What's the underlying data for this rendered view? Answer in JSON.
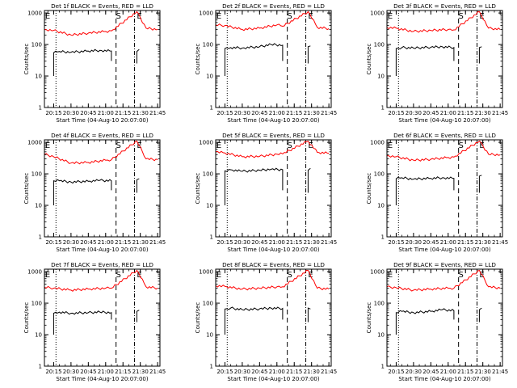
{
  "figure": {
    "x_axis_title": "Start Time (04-Aug-10 20:07:00)",
    "y_axis_title": "Counts/sec",
    "x_tick_labels": [
      "20:15",
      "20:30",
      "20:45",
      "21:00",
      "21:15",
      "21:30",
      "21:45"
    ],
    "y_tick_labels": [
      "1",
      "10",
      "100",
      "1000"
    ],
    "colors": {
      "events": "#000000",
      "lld": "#ff0000",
      "background": "#ffffff"
    }
  },
  "chart_data": [
    {
      "type": "line",
      "title": "Det 1f BLACK = Events, RED = LLD",
      "xlabel": "Start Time (04-Aug-10 20:07:00)",
      "ylabel": "Counts/sec",
      "xlim": [
        "20:07",
        "21:47"
      ],
      "ylim": [
        1,
        1200
      ],
      "yscale": "log",
      "markers": [
        "E",
        "S",
        "E"
      ],
      "series": [
        {
          "name": "Events",
          "color": "#000000",
          "x": [
            "20:15",
            "20:20",
            "20:30",
            "20:45",
            "20:55",
            "21:05",
            "21:27",
            "21:29"
          ],
          "y": [
            55,
            60,
            57,
            62,
            65,
            62,
            60,
            70
          ]
        },
        {
          "name": "LLD",
          "color": "#ff0000",
          "x": [
            "20:07",
            "20:15",
            "20:30",
            "20:45",
            "21:00",
            "21:05",
            "21:27",
            "21:35",
            "21:45"
          ],
          "y": [
            300,
            280,
            200,
            230,
            260,
            270,
            1100,
            330,
            300
          ]
        }
      ]
    },
    {
      "type": "line",
      "title": "Det 2f BLACK = Events, RED = LLD",
      "xlabel": "Start Time (04-Aug-10 20:07:00)",
      "ylabel": "Counts/sec",
      "xlim": [
        "20:07",
        "21:47"
      ],
      "ylim": [
        1,
        1200
      ],
      "yscale": "log",
      "markers": [
        "E",
        "S",
        "E"
      ],
      "series": [
        {
          "name": "Events",
          "color": "#000000",
          "x": [
            "20:15",
            "20:20",
            "20:30",
            "20:45",
            "20:55",
            "21:05",
            "21:27",
            "21:29"
          ],
          "y": [
            75,
            80,
            78,
            85,
            100,
            95,
            85,
            90
          ]
        },
        {
          "name": "LLD",
          "color": "#ff0000",
          "x": [
            "20:07",
            "20:15",
            "20:30",
            "20:45",
            "21:00",
            "21:05",
            "21:27",
            "21:35",
            "21:45"
          ],
          "y": [
            420,
            400,
            300,
            330,
            420,
            380,
            1100,
            350,
            320
          ]
        }
      ]
    },
    {
      "type": "line",
      "title": "Det 3f BLACK = Events, RED = LLD",
      "xlabel": "Start Time (04-Aug-10 20:07:00)",
      "ylabel": "Counts/sec",
      "xlim": [
        "20:07",
        "21:47"
      ],
      "ylim": [
        1,
        1200
      ],
      "yscale": "log",
      "markers": [
        "E",
        "S",
        "E"
      ],
      "series": [
        {
          "name": "Events",
          "color": "#000000",
          "x": [
            "20:15",
            "20:20",
            "20:30",
            "20:45",
            "20:55",
            "21:05",
            "21:27",
            "21:29"
          ],
          "y": [
            75,
            80,
            77,
            82,
            85,
            80,
            80,
            85
          ]
        },
        {
          "name": "LLD",
          "color": "#ff0000",
          "x": [
            "20:07",
            "20:15",
            "20:30",
            "20:45",
            "21:00",
            "21:05",
            "21:27",
            "21:35",
            "21:45"
          ],
          "y": [
            350,
            330,
            260,
            280,
            300,
            290,
            1100,
            330,
            300
          ]
        }
      ]
    },
    {
      "type": "line",
      "title": "Det 4f BLACK = Events, RED = LLD",
      "xlabel": "Start Time (04-Aug-10 20:07:00)",
      "ylabel": "Counts/sec",
      "xlim": [
        "20:07",
        "21:47"
      ],
      "ylim": [
        1,
        1200
      ],
      "yscale": "log",
      "markers": [
        "E",
        "S",
        "E"
      ],
      "series": [
        {
          "name": "Events",
          "color": "#000000",
          "x": [
            "20:15",
            "20:20",
            "20:30",
            "20:45",
            "20:55",
            "21:05",
            "21:27",
            "21:29"
          ],
          "y": [
            60,
            60,
            55,
            58,
            62,
            60,
            65,
            70
          ]
        },
        {
          "name": "LLD",
          "color": "#ff0000",
          "x": [
            "20:07",
            "20:15",
            "20:30",
            "20:45",
            "21:00",
            "21:05",
            "21:27",
            "21:35",
            "21:45"
          ],
          "y": [
            420,
            350,
            220,
            230,
            270,
            280,
            1100,
            300,
            280
          ]
        }
      ]
    },
    {
      "type": "line",
      "title": "Det 5f BLACK = Events, RED = LLD",
      "xlabel": "Start Time (04-Aug-10 20:07:00)",
      "ylabel": "Counts/sec",
      "xlim": [
        "20:07",
        "21:47"
      ],
      "ylim": [
        1,
        1200
      ],
      "yscale": "log",
      "markers": [
        "E",
        "S",
        "E"
      ],
      "series": [
        {
          "name": "Events",
          "color": "#000000",
          "x": [
            "20:15",
            "20:20",
            "20:30",
            "20:45",
            "20:55",
            "21:05",
            "21:27",
            "21:29"
          ],
          "y": [
            125,
            135,
            120,
            130,
            140,
            135,
            130,
            150
          ]
        },
        {
          "name": "LLD",
          "color": "#ff0000",
          "x": [
            "20:07",
            "20:15",
            "20:30",
            "20:45",
            "21:00",
            "21:05",
            "21:27",
            "21:35",
            "21:45"
          ],
          "y": [
            500,
            460,
            350,
            360,
            420,
            430,
            1100,
            480,
            450
          ]
        }
      ]
    },
    {
      "type": "line",
      "title": "Det 6f BLACK = Events, RED = LLD",
      "xlabel": "Start Time (04-Aug-10 20:07:00)",
      "ylabel": "Counts/sec",
      "xlim": [
        "20:07",
        "21:47"
      ],
      "ylim": [
        1,
        1200
      ],
      "yscale": "log",
      "markers": [
        "E",
        "S",
        "E"
      ],
      "series": [
        {
          "name": "Events",
          "color": "#000000",
          "x": [
            "20:15",
            "20:20",
            "20:30",
            "20:45",
            "20:55",
            "21:05",
            "21:27",
            "21:29"
          ],
          "y": [
            70,
            75,
            68,
            72,
            75,
            72,
            85,
            90
          ]
        },
        {
          "name": "LLD",
          "color": "#ff0000",
          "x": [
            "20:07",
            "20:15",
            "20:30",
            "20:45",
            "21:00",
            "21:05",
            "21:27",
            "21:35",
            "21:45"
          ],
          "y": [
            380,
            350,
            270,
            290,
            330,
            340,
            1100,
            420,
            400
          ]
        }
      ]
    },
    {
      "type": "line",
      "title": "Det 7f BLACK = Events, RED = LLD",
      "xlabel": "Start Time (04-Aug-10 20:07:00)",
      "ylabel": "Counts/sec",
      "xlim": [
        "20:07",
        "21:47"
      ],
      "ylim": [
        1,
        1200
      ],
      "yscale": "log",
      "markers": [
        "E",
        "S",
        "E"
      ],
      "series": [
        {
          "name": "Events",
          "color": "#000000",
          "x": [
            "20:15",
            "20:20",
            "20:30",
            "20:45",
            "20:55",
            "21:05",
            "21:27",
            "21:29"
          ],
          "y": [
            48,
            52,
            48,
            50,
            52,
            50,
            55,
            60
          ]
        },
        {
          "name": "LLD",
          "color": "#ff0000",
          "x": [
            "20:07",
            "20:15",
            "20:30",
            "20:45",
            "21:00",
            "21:05",
            "21:27",
            "21:35",
            "21:45"
          ],
          "y": [
            320,
            300,
            260,
            280,
            300,
            300,
            1100,
            330,
            300
          ]
        }
      ]
    },
    {
      "type": "line",
      "title": "Det 8f BLACK = Events, RED = LLD",
      "xlabel": "Start Time (04-Aug-10 20:07:00)",
      "ylabel": "Counts/sec",
      "xlim": [
        "20:07",
        "21:47"
      ],
      "ylim": [
        1,
        1200
      ],
      "yscale": "log",
      "markers": [
        "E",
        "S",
        "E"
      ],
      "series": [
        {
          "name": "Events",
          "color": "#000000",
          "x": [
            "20:15",
            "20:20",
            "20:30",
            "20:45",
            "20:55",
            "21:05",
            "21:27",
            "21:29"
          ],
          "y": [
            65,
            70,
            62,
            66,
            70,
            68,
            70,
            65
          ]
        },
        {
          "name": "LLD",
          "color": "#ff0000",
          "x": [
            "20:07",
            "20:15",
            "20:30",
            "20:45",
            "21:00",
            "21:05",
            "21:27",
            "21:35",
            "21:45"
          ],
          "y": [
            360,
            340,
            280,
            300,
            330,
            330,
            1100,
            300,
            280
          ]
        }
      ]
    },
    {
      "type": "line",
      "title": "Det 9f BLACK = Events, RED = LLD",
      "xlabel": "Start Time (04-Aug-10 20:07:00)",
      "ylabel": "Counts/sec",
      "xlim": [
        "20:07",
        "21:47"
      ],
      "ylim": [
        1,
        1200
      ],
      "yscale": "log",
      "markers": [
        "E",
        "S",
        "E"
      ],
      "series": [
        {
          "name": "Events",
          "color": "#000000",
          "x": [
            "20:15",
            "20:20",
            "20:30",
            "20:45",
            "20:55",
            "21:05",
            "21:27",
            "21:29"
          ],
          "y": [
            50,
            55,
            50,
            55,
            62,
            58,
            62,
            70
          ]
        },
        {
          "name": "LLD",
          "color": "#ff0000",
          "x": [
            "20:07",
            "20:15",
            "20:30",
            "20:45",
            "21:00",
            "21:05",
            "21:27",
            "21:35",
            "21:45"
          ],
          "y": [
            330,
            310,
            260,
            280,
            300,
            300,
            1100,
            330,
            300
          ]
        }
      ]
    }
  ]
}
